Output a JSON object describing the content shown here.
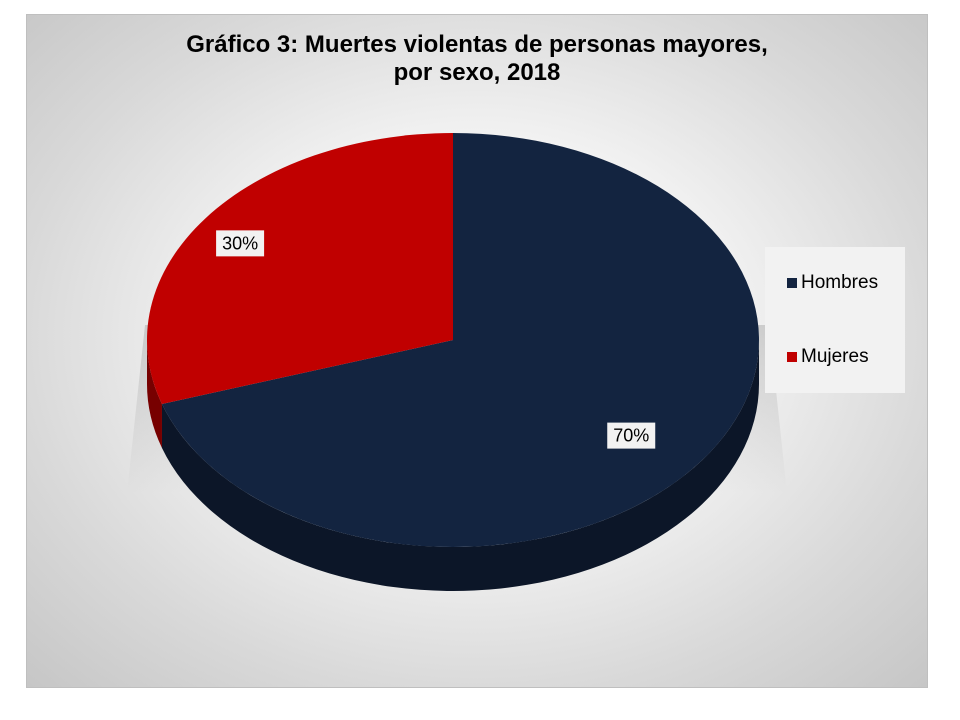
{
  "chart_data": {
    "type": "pie",
    "title_lines": [
      "Gráfico 3: Muertes violentas de personas mayores,",
      "por sexo, 2018"
    ],
    "categories": [
      "Hombres",
      "Mujeres"
    ],
    "values": [
      70,
      30
    ],
    "labels": [
      "70%",
      "30%"
    ],
    "colors": [
      "#132440",
      "#c00000"
    ],
    "legend_position": "right"
  }
}
